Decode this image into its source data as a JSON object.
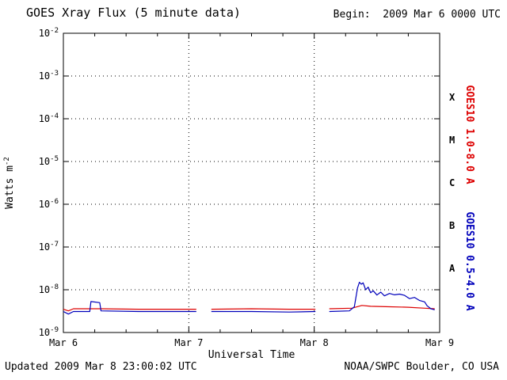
{
  "header": {
    "title": "GOES Xray Flux (5 minute data)",
    "begin_label": "Begin:  2009 Mar 6 0000 UTC"
  },
  "footer": {
    "updated": "Updated 2009 Mar 8 23:00:02 UTC",
    "source": "NOAA/SWPC Boulder, CO USA"
  },
  "chart_data": {
    "type": "line",
    "title": "GOES Xray Flux (5 minute data)",
    "xlabel": "Universal Time",
    "ylabel_parts": [
      "Watts m",
      "-2"
    ],
    "xlim_days": [
      0,
      3
    ],
    "ylim_log": [
      -9,
      -2
    ],
    "grid": true,
    "x_unit": "days after 2009 Mar 6 0000 UTC",
    "x_ticks": [
      {
        "label": "Mar 6",
        "day": 0
      },
      {
        "label": "Mar 7",
        "day": 1
      },
      {
        "label": "Mar 8",
        "day": 2
      },
      {
        "label": "Mar 9",
        "day": 3
      }
    ],
    "y_ticks": [
      {
        "base": "10",
        "exp": "-2"
      },
      {
        "base": "10",
        "exp": "-3"
      },
      {
        "base": "10",
        "exp": "-4"
      },
      {
        "base": "10",
        "exp": "-5"
      },
      {
        "base": "10",
        "exp": "-6"
      },
      {
        "base": "10",
        "exp": "-7"
      },
      {
        "base": "10",
        "exp": "-8"
      },
      {
        "base": "10",
        "exp": "-9"
      }
    ],
    "flare_classes": [
      {
        "label": "X",
        "log_center": -3.5
      },
      {
        "label": "M",
        "log_center": -4.5
      },
      {
        "label": "C",
        "log_center": -5.5
      },
      {
        "label": "B",
        "log_center": -6.5
      },
      {
        "label": "A",
        "log_center": -7.5
      }
    ],
    "series": [
      {
        "name": "GOES10 1.0-8.0 A",
        "color": "#dd0000",
        "segments": [
          [
            [
              0.0,
              3.5e-09
            ],
            [
              0.04,
              3.2e-09
            ],
            [
              0.08,
              3.6e-09
            ],
            [
              0.3,
              3.6e-09
            ],
            [
              0.6,
              3.5e-09
            ],
            [
              0.9,
              3.5e-09
            ],
            [
              1.06,
              3.5e-09
            ]
          ],
          [
            [
              1.18,
              3.5e-09
            ],
            [
              1.5,
              3.6e-09
            ],
            [
              1.8,
              3.5e-09
            ],
            [
              2.01,
              3.5e-09
            ]
          ],
          [
            [
              2.12,
              3.6e-09
            ],
            [
              2.3,
              3.7e-09
            ],
            [
              2.38,
              4.3e-09
            ],
            [
              2.45,
              4.1e-09
            ],
            [
              2.6,
              4e-09
            ],
            [
              2.75,
              3.9e-09
            ],
            [
              2.88,
              3.7e-09
            ],
            [
              2.96,
              3.6e-09
            ]
          ]
        ]
      },
      {
        "name": "GOES10 0.5-4.0 A",
        "color": "#0000bb",
        "segments": [
          [
            [
              0.0,
              3.1e-09
            ],
            [
              0.04,
              2.7e-09
            ],
            [
              0.08,
              3.1e-09
            ],
            [
              0.21,
              3.1e-09
            ],
            [
              0.22,
              5.3e-09
            ],
            [
              0.29,
              5e-09
            ],
            [
              0.3,
              3.2e-09
            ],
            [
              0.6,
              3.1e-09
            ],
            [
              0.9,
              3.1e-09
            ],
            [
              1.06,
              3.1e-09
            ]
          ],
          [
            [
              1.18,
              3.1e-09
            ],
            [
              1.5,
              3.1e-09
            ],
            [
              1.8,
              3e-09
            ],
            [
              2.01,
              3.1e-09
            ]
          ],
          [
            [
              2.12,
              3.1e-09
            ],
            [
              2.28,
              3.2e-09
            ],
            [
              2.32,
              4e-09
            ],
            [
              2.345,
              1.1e-08
            ],
            [
              2.36,
              1.5e-08
            ],
            [
              2.375,
              1.35e-08
            ],
            [
              2.39,
              1.45e-08
            ],
            [
              2.41,
              1e-08
            ],
            [
              2.43,
              1.15e-08
            ],
            [
              2.45,
              8.5e-09
            ],
            [
              2.47,
              9.5e-09
            ],
            [
              2.5,
              7.5e-09
            ],
            [
              2.53,
              8.8e-09
            ],
            [
              2.56,
              7.2e-09
            ],
            [
              2.6,
              8.2e-09
            ],
            [
              2.64,
              7.6e-09
            ],
            [
              2.68,
              7.9e-09
            ],
            [
              2.72,
              7.4e-09
            ],
            [
              2.76,
              6.2e-09
            ],
            [
              2.8,
              6.6e-09
            ],
            [
              2.84,
              5.6e-09
            ],
            [
              2.88,
              5.2e-09
            ],
            [
              2.9,
              4.2e-09
            ],
            [
              2.93,
              3.6e-09
            ],
            [
              2.96,
              3.4e-09
            ]
          ]
        ]
      }
    ]
  }
}
